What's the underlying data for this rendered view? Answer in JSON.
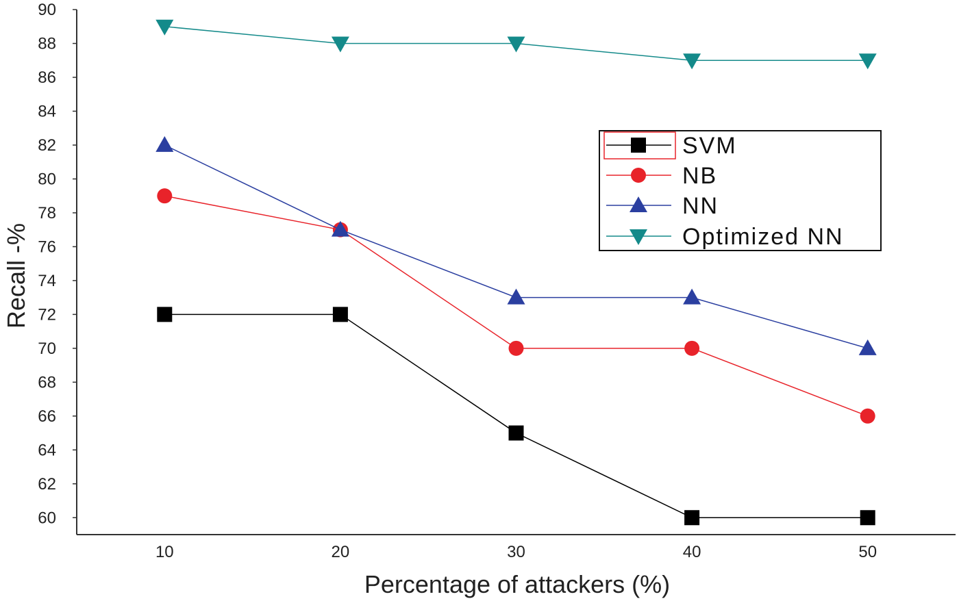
{
  "chart_data": {
    "type": "line",
    "title": "",
    "xlabel": "Percentage of attackers (%)",
    "ylabel": "Recall -%",
    "x": [
      10,
      20,
      30,
      40,
      50
    ],
    "xticks": [
      "10",
      "20",
      "30",
      "40",
      "50"
    ],
    "yticks": [
      "60",
      "62",
      "64",
      "66",
      "68",
      "70",
      "72",
      "74",
      "76",
      "78",
      "80",
      "82",
      "84",
      "86",
      "88",
      "90"
    ],
    "ylim": [
      59,
      90
    ],
    "xlim": [
      5,
      55
    ],
    "grid": false,
    "legend_position": "right",
    "series": [
      {
        "name": "SVM",
        "values": [
          72,
          72,
          65,
          60,
          60
        ],
        "color": "#000000",
        "marker": "square"
      },
      {
        "name": "NB",
        "values": [
          79,
          77,
          70,
          70,
          66
        ],
        "color": "#e8232a",
        "marker": "circle"
      },
      {
        "name": "NN",
        "values": [
          82,
          77,
          73,
          73,
          70
        ],
        "color": "#2b3fa0",
        "marker": "triangle-up"
      },
      {
        "name": "Optimized NN",
        "values": [
          89,
          88,
          88,
          87,
          87
        ],
        "color": "#148a8a",
        "marker": "triangle-down"
      }
    ]
  }
}
